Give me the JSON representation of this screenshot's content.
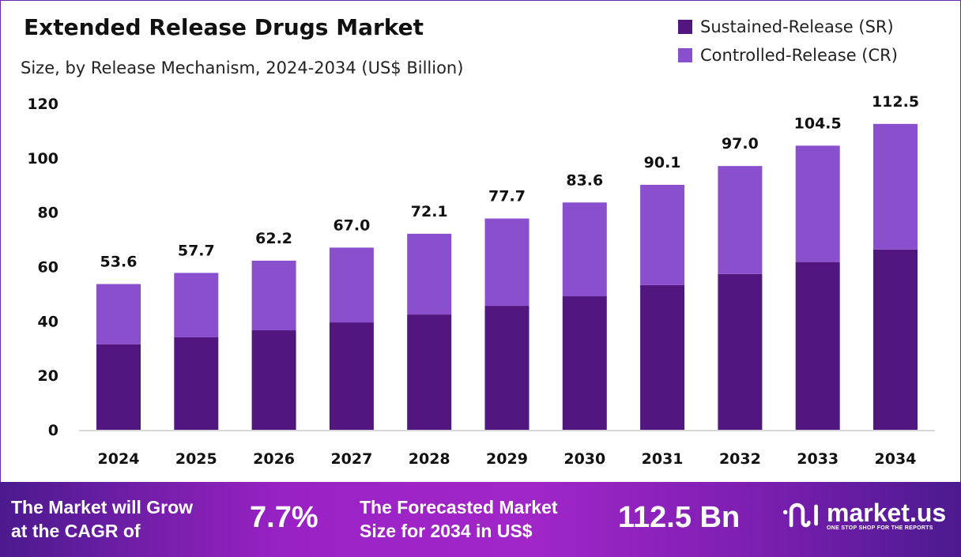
{
  "chart_data": {
    "type": "bar",
    "stacked": true,
    "title": "Extended Release Drugs Market",
    "subtitle": "Size, by Release Mechanism, 2024-2034 (US$ Billion)",
    "categories": [
      "2024",
      "2025",
      "2026",
      "2027",
      "2028",
      "2029",
      "2030",
      "2031",
      "2032",
      "2033",
      "2034"
    ],
    "series": [
      {
        "name": "Sustained-Release (SR)",
        "color": "#52167f",
        "values": [
          31.4,
          34.0,
          36.6,
          39.5,
          42.4,
          45.6,
          49.1,
          53.2,
          57.3,
          61.6,
          66.3
        ]
      },
      {
        "name": "Controlled-Release (CR)",
        "color": "#8a4fcc",
        "values": [
          22.2,
          23.7,
          25.6,
          27.5,
          29.7,
          32.1,
          34.5,
          36.9,
          39.7,
          42.9,
          46.2
        ]
      }
    ],
    "totals": [
      "53.6",
      "57.7",
      "62.2",
      "67.0",
      "72.1",
      "77.7",
      "83.6",
      "90.1",
      "97.0",
      "104.5",
      "112.5"
    ],
    "ylim": [
      0,
      120
    ],
    "yticks": [
      "0",
      "20",
      "40",
      "60",
      "80",
      "100",
      "120"
    ],
    "grid": false,
    "legend_position": "top-right"
  },
  "footer": {
    "cagr_text_line1": "The Market will Grow",
    "cagr_text_line2": "at the CAGR of",
    "cagr_value": "7.7%",
    "forecast_text_line1": "The Forecasted Market",
    "forecast_text_line2": "Size for 2034 in US$",
    "forecast_value": "112.5 Bn",
    "logo_name": "market.us",
    "logo_tagline": "ONE STOP SHOP FOR THE REPORTS"
  }
}
